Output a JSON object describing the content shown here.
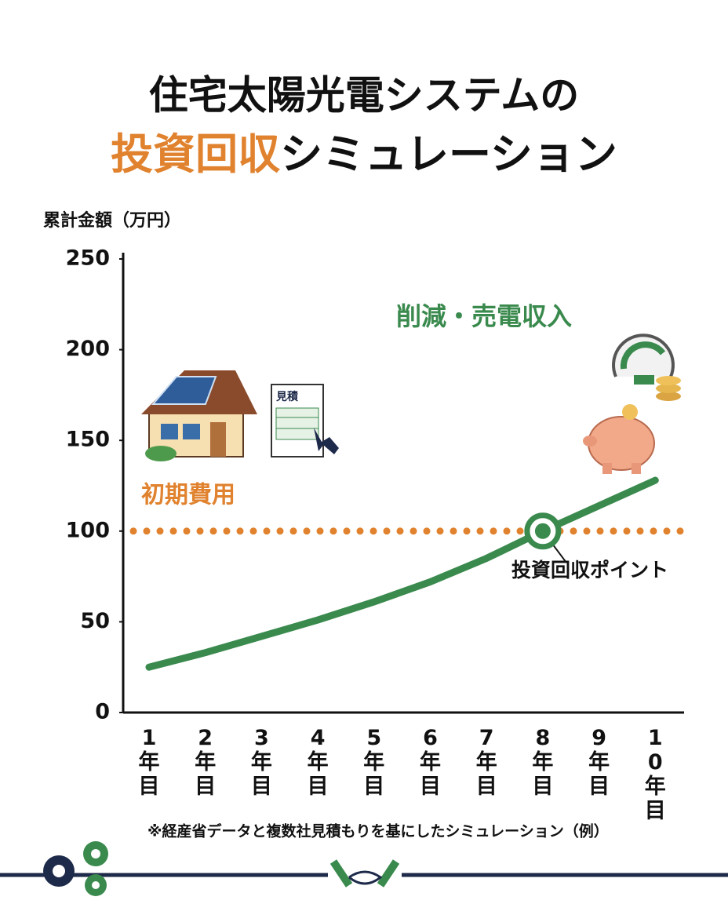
{
  "chart_data": {
    "type": "line",
    "title": "住宅太陽光電システムの",
    "title_highlight": "投資回収",
    "title_rest": "シミュレーション",
    "y_label": "累計金額（万円）",
    "categories": [
      "1年目",
      "2年目",
      "3年目",
      "4年目",
      "5年目",
      "6年目",
      "7年目",
      "8年目",
      "9年目",
      "10年目"
    ],
    "series": [
      {
        "name": "削減・売電収入",
        "color": "#3a8a4e",
        "values": [
          25,
          33,
          42,
          51,
          61,
          72,
          85,
          100,
          114,
          128
        ]
      }
    ],
    "ylim": [
      0,
      250
    ],
    "yticks": [
      0,
      50,
      100,
      150,
      200,
      250
    ],
    "reference_line": {
      "value": 100,
      "label": "初期費用",
      "color": "#e0822e"
    },
    "annotation": {
      "label": "投資回収ポイント",
      "index": 7
    },
    "document_label": "見積",
    "note": "※経産省データと複数社見積もりを基にしたシミュレーション（例）"
  }
}
